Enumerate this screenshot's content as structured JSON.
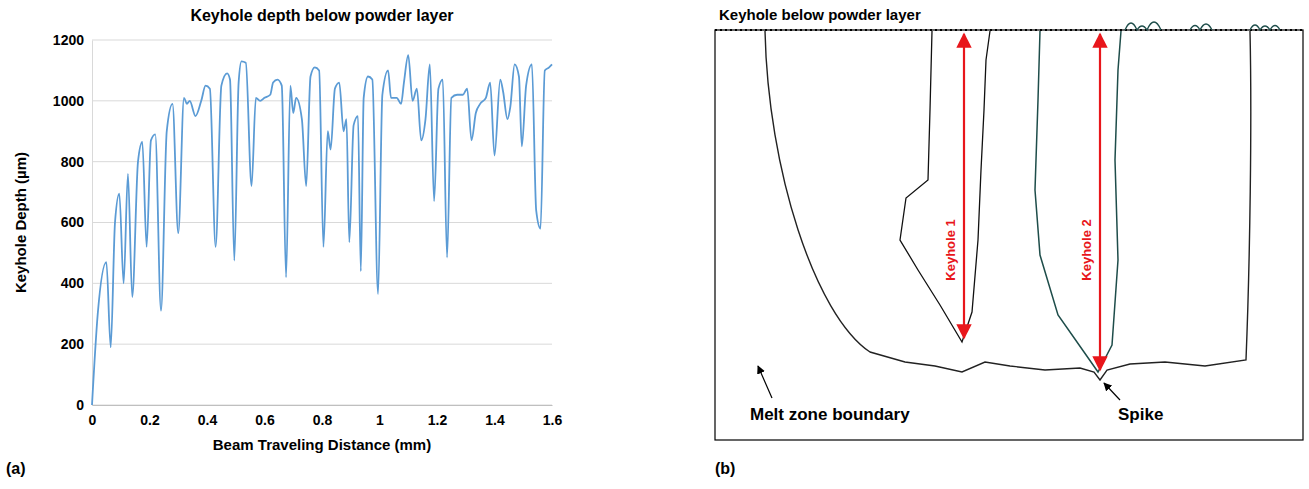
{
  "chart_data": {
    "type": "line",
    "title": "Keyhole depth below powder layer",
    "x_label": "Beam Traveling Distance (mm)",
    "y_label": "Keyhole Depth (µm)",
    "color": "#5b9bd5",
    "x": [
      0,
      0.02,
      0.05,
      0.065,
      0.08,
      0.095,
      0.11,
      0.125,
      0.14,
      0.16,
      0.175,
      0.19,
      0.205,
      0.22,
      0.24,
      0.26,
      0.28,
      0.3,
      0.32,
      0.33,
      0.34,
      0.36,
      0.38,
      0.395,
      0.41,
      0.43,
      0.45,
      0.47,
      0.48,
      0.495,
      0.51,
      0.52,
      0.535,
      0.555,
      0.57,
      0.585,
      0.6,
      0.62,
      0.63,
      0.645,
      0.66,
      0.675,
      0.69,
      0.7,
      0.71,
      0.73,
      0.745,
      0.76,
      0.775,
      0.79,
      0.805,
      0.82,
      0.83,
      0.845,
      0.86,
      0.875,
      0.885,
      0.895,
      0.91,
      0.925,
      0.935,
      0.945,
      0.96,
      0.975,
      0.995,
      1.01,
      1.03,
      1.04,
      1.06,
      1.075,
      1.085,
      1.1,
      1.115,
      1.13,
      1.145,
      1.16,
      1.175,
      1.19,
      1.205,
      1.22,
      1.235,
      1.25,
      1.27,
      1.29,
      1.305,
      1.32,
      1.335,
      1.35,
      1.37,
      1.385,
      1.4,
      1.42,
      1.43,
      1.445,
      1.455,
      1.47,
      1.485,
      1.495,
      1.51,
      1.53,
      1.545,
      1.56,
      1.575,
      1.59,
      1.6
    ],
    "values": [
      0,
      300,
      470,
      190,
      600,
      695,
      400,
      760,
      355,
      800,
      865,
      520,
      870,
      890,
      310,
      900,
      990,
      565,
      1010,
      990,
      1000,
      950,
      1000,
      1050,
      1040,
      520,
      1050,
      1090,
      1070,
      475,
      1060,
      1130,
      1125,
      720,
      1010,
      1000,
      1010,
      1020,
      1060,
      1070,
      1050,
      420,
      1050,
      960,
      1010,
      940,
      720,
      1080,
      1110,
      1100,
      520,
      900,
      840,
      1040,
      1060,
      900,
      940,
      535,
      920,
      950,
      440,
      1010,
      1080,
      1070,
      365,
      1020,
      1100,
      1010,
      1010,
      990,
      1060,
      1150,
      1000,
      1040,
      870,
      940,
      1120,
      670,
      1040,
      1070,
      485,
      1010,
      1020,
      1020,
      1040,
      870,
      960,
      990,
      1010,
      1060,
      820,
      1070,
      1030,
      940,
      980,
      1120,
      1080,
      850,
      1050,
      1120,
      640,
      580,
      1100,
      1110,
      1120
    ],
    "xlim": [
      0,
      1.6
    ],
    "xticks": [
      0,
      0.2,
      0.4,
      0.6,
      0.8,
      1,
      1.2,
      1.4,
      1.6
    ],
    "ylim": [
      0,
      1200
    ],
    "yticks": [
      0,
      200,
      400,
      600,
      800,
      1000,
      1200
    ],
    "grid": true
  },
  "panel_labels": [
    "(a)",
    "(b)"
  ],
  "diagram": {
    "title": "Keyhole below powder layer",
    "keyhole_1": "Keyhole 1",
    "keyhole_2": "Keyhole 2",
    "melt_zone_boundary": "Melt zone boundary",
    "spike": "Spike"
  }
}
